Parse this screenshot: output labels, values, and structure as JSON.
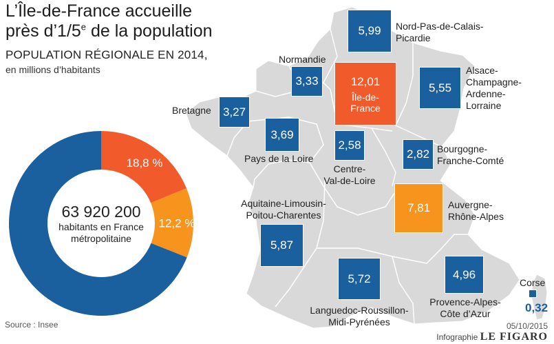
{
  "title": {
    "line1": "L’Île-de-France accueille",
    "line2_pre": "près d’1/5",
    "line2_sup": "e",
    "line2_post": " de la population"
  },
  "subtitle": "POPULATION RÉGIONALE EN 2014,",
  "subtitle2": "en millions d’habitants",
  "donut": {
    "total": "63 920 200",
    "total_label_line1": "habitants en France",
    "total_label_line2": "métropolitaine",
    "slices": [
      {
        "label": "18,8 %",
        "value": 18.8,
        "color": "#f15a2b"
      },
      {
        "label": "12,2 %",
        "value": 12.2,
        "color": "#f7941d"
      },
      {
        "label": "",
        "value": 69.0,
        "color": "#1a5f9e"
      }
    ]
  },
  "regions": [
    {
      "id": "nord",
      "name_lines": [
        "Nord-Pas-de-Calais-",
        "Picardie"
      ],
      "value": "5,99",
      "color": "#1a5f9e"
    },
    {
      "id": "normandie",
      "name_lines": [
        "Normandie"
      ],
      "value": "3,33",
      "color": "#1a5f9e"
    },
    {
      "id": "idf",
      "name_lines": [
        "Île-de-",
        "France"
      ],
      "value": "12,01",
      "color": "#f15a2b"
    },
    {
      "id": "alsace",
      "name_lines": [
        "Alsace-",
        "Champagne-",
        "Ardenne-",
        "Lorraine"
      ],
      "value": "5,55",
      "color": "#1a5f9e"
    },
    {
      "id": "bretagne",
      "name_lines": [
        "Bretagne"
      ],
      "value": "3,27",
      "color": "#1a5f9e"
    },
    {
      "id": "pdl",
      "name_lines": [
        "Pays de la Loire"
      ],
      "value": "3,69",
      "color": "#1a5f9e"
    },
    {
      "id": "cvl",
      "name_lines": [
        "Centre-",
        "Val-de-Loire"
      ],
      "value": "2,58",
      "color": "#1a5f9e"
    },
    {
      "id": "bfc",
      "name_lines": [
        "Bourgogne-",
        "Franche-Comté"
      ],
      "value": "2,82",
      "color": "#1a5f9e"
    },
    {
      "id": "aura",
      "name_lines": [
        "Auvergne-",
        "Rhône-Alpes"
      ],
      "value": "7,81",
      "color": "#f7941d"
    },
    {
      "id": "alpc",
      "name_lines": [
        "Aquitaine-Limousin-",
        "Poitou-Charentes"
      ],
      "value": "5,87",
      "color": "#1a5f9e"
    },
    {
      "id": "lrmp",
      "name_lines": [
        "Languedoc-Roussillon-",
        "Midi-Pyrénées"
      ],
      "value": "5,72",
      "color": "#1a5f9e"
    },
    {
      "id": "paca",
      "name_lines": [
        "Provence-Alpes-",
        "Côte d’Azur"
      ],
      "value": "4,96",
      "color": "#1a5f9e"
    },
    {
      "id": "corse",
      "name_lines": [
        "Corse"
      ],
      "value": "0,32",
      "color": "#1a5f9e"
    }
  ],
  "footer": {
    "source": "Source : Insee",
    "date": "05/10/2015",
    "credit_pre": "Infographie",
    "credit_brand": "LE FIGARO"
  },
  "colors": {
    "map_land": "#d9d9d9",
    "map_border": "#ffffff",
    "blue": "#1a5f9e",
    "red": "#f15a2b",
    "orange": "#f7941d"
  }
}
